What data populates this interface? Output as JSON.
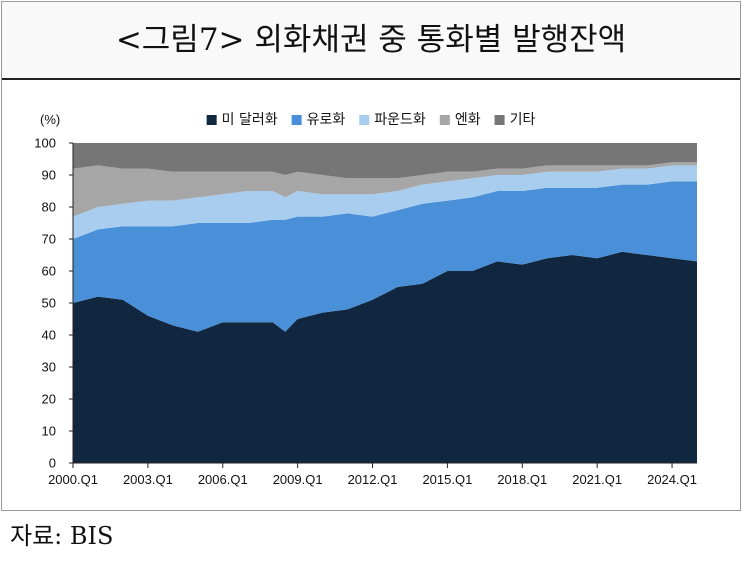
{
  "title": "<그림7> 외화채권 중 통화별 발행잔액",
  "source": "자료: BIS",
  "chart_data": {
    "type": "area",
    "stacked": true,
    "ylabel": "(%)",
    "ylim": [
      0,
      100
    ],
    "yticks": [
      0,
      10,
      20,
      30,
      40,
      50,
      60,
      70,
      80,
      90,
      100
    ],
    "xticks": [
      "2000.Q1",
      "2003.Q1",
      "2006.Q1",
      "2009.Q1",
      "2012.Q1",
      "2015.Q1",
      "2018.Q1",
      "2021.Q1",
      "2024.Q1"
    ],
    "legend_position": "top",
    "x": [
      "2000.Q1",
      "2001.Q1",
      "2002.Q1",
      "2003.Q1",
      "2004.Q1",
      "2005.Q1",
      "2006.Q1",
      "2007.Q1",
      "2008.Q1",
      "2008.Q3",
      "2009.Q1",
      "2010.Q1",
      "2011.Q1",
      "2012.Q1",
      "2013.Q1",
      "2014.Q1",
      "2015.Q1",
      "2016.Q1",
      "2017.Q1",
      "2018.Q1",
      "2019.Q1",
      "2020.Q1",
      "2021.Q1",
      "2022.Q1",
      "2023.Q1",
      "2024.Q1",
      "2025.Q1"
    ],
    "series": [
      {
        "name": "미 달러화",
        "color": "#10273f",
        "values": [
          50,
          52,
          51,
          46,
          43,
          41,
          44,
          44,
          44,
          41,
          45,
          47,
          48,
          51,
          55,
          56,
          60,
          60,
          63,
          62,
          64,
          65,
          64,
          66,
          65,
          64,
          63
        ]
      },
      {
        "name": "유로화",
        "color": "#4a90d9",
        "values": [
          20,
          21,
          23,
          28,
          31,
          34,
          31,
          31,
          32,
          35,
          32,
          30,
          30,
          26,
          24,
          25,
          22,
          23,
          22,
          23,
          22,
          21,
          22,
          21,
          22,
          24,
          25
        ]
      },
      {
        "name": "파운드화",
        "color": "#a9cdef",
        "values": [
          7,
          7,
          7,
          8,
          8,
          8,
          9,
          10,
          9,
          7,
          8,
          7,
          6,
          7,
          6,
          6,
          6,
          6,
          5,
          5,
          5,
          5,
          5,
          5,
          5,
          5,
          5
        ]
      },
      {
        "name": "엔화",
        "color": "#a6a6a6",
        "values": [
          15,
          13,
          11,
          10,
          9,
          8,
          7,
          6,
          6,
          7,
          6,
          6,
          5,
          5,
          4,
          3,
          3,
          2,
          2,
          2,
          2,
          2,
          2,
          1,
          1,
          1,
          1
        ]
      },
      {
        "name": "기타",
        "color": "#767676",
        "values": [
          8,
          7,
          8,
          8,
          9,
          9,
          9,
          9,
          9,
          10,
          9,
          10,
          11,
          11,
          11,
          10,
          9,
          9,
          8,
          8,
          7,
          7,
          7,
          7,
          7,
          6,
          6
        ]
      }
    ]
  }
}
